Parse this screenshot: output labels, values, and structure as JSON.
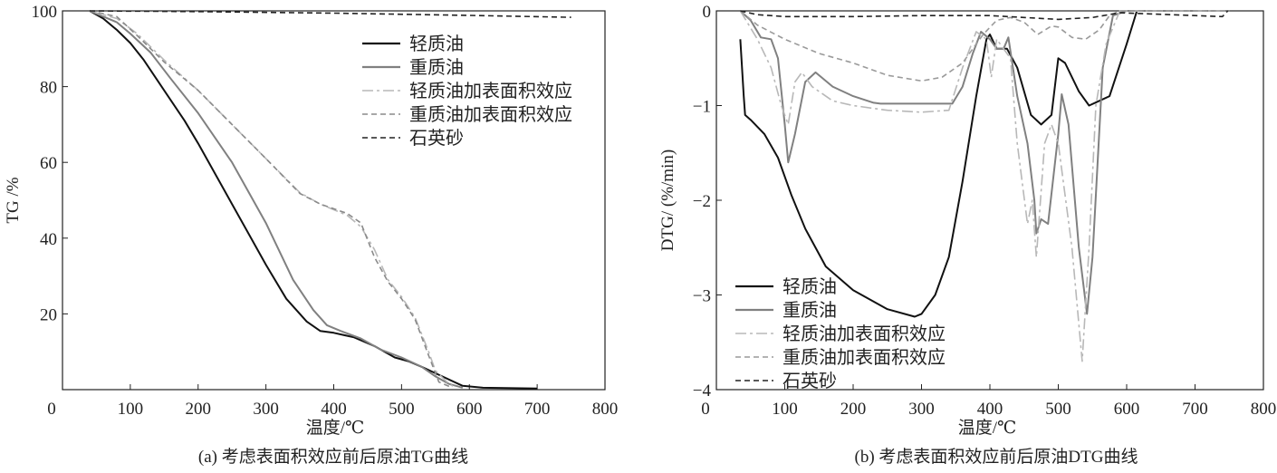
{
  "chart_data": [
    {
      "type": "line",
      "caption": "(a) 考虑表面积效应前后原油TG曲线",
      "xlabel": "温度/℃",
      "ylabel": "TG /%",
      "xlim": [
        0,
        800
      ],
      "ylim": [
        0,
        100
      ],
      "xticks": [
        "0",
        "100",
        "200",
        "300",
        "400",
        "500",
        "600",
        "700",
        "800"
      ],
      "yticks": [
        "20",
        "40",
        "60",
        "80",
        "100"
      ],
      "legend_position": "top-right",
      "series": [
        {
          "name": "轻质油",
          "color": "#111111",
          "style": "solid",
          "x": [
            40,
            60,
            80,
            100,
            120,
            150,
            180,
            200,
            250,
            300,
            330,
            360,
            380,
            400,
            430,
            460,
            490,
            510,
            530,
            560,
            590,
            620,
            700
          ],
          "y": [
            100,
            98,
            95,
            91.5,
            87,
            79,
            71,
            65,
            49,
            33,
            24,
            18,
            15.5,
            15,
            13.8,
            11.5,
            8.5,
            7.5,
            6,
            3.5,
            1,
            0.5,
            0.3
          ]
        },
        {
          "name": "重质油",
          "color": "#808080",
          "style": "solid",
          "x": [
            40,
            80,
            100,
            130,
            160,
            200,
            250,
            300,
            340,
            370,
            390,
            410,
            440,
            470,
            500,
            530,
            550,
            570,
            590
          ],
          "y": [
            100,
            97,
            94,
            89,
            82,
            73,
            60,
            44,
            29,
            21,
            17,
            15.5,
            13.5,
            10.5,
            8.5,
            6,
            3.5,
            1.5,
            0.5
          ]
        },
        {
          "name": "轻质油加表面积效应",
          "color": "#b8b8b8",
          "style": "dashdot",
          "x": [
            40,
            80,
            110,
            150,
            200,
            250,
            300,
            350,
            380,
            420,
            440,
            460,
            480,
            500,
            520,
            540,
            550,
            570,
            580
          ],
          "y": [
            100,
            98,
            94,
            87,
            79,
            70,
            61,
            52,
            49,
            46,
            43,
            37,
            29,
            24.5,
            19,
            10,
            5,
            1.5,
            0.5
          ]
        },
        {
          "name": "重质油加表面积效应",
          "color": "#8a8a8a",
          "style": "dashed",
          "x": [
            40,
            80,
            110,
            150,
            200,
            250,
            300,
            350,
            380,
            420,
            440,
            460,
            480,
            500,
            520,
            540,
            555,
            575
          ],
          "y": [
            100,
            98.5,
            93.5,
            86.5,
            79,
            70,
            61,
            51.8,
            49,
            46.5,
            44,
            35,
            28.5,
            24,
            18.5,
            9,
            2,
            0.5
          ]
        },
        {
          "name": "石英砂",
          "color": "#222222",
          "style": "dashed",
          "x": [
            40,
            200,
            400,
            600,
            750
          ],
          "y": [
            100,
            99.8,
            99.4,
            98.8,
            98.3
          ]
        }
      ]
    },
    {
      "type": "line",
      "caption": "(b) 考虑表面积效应前后原油DTG曲线",
      "xlabel": "温度/℃",
      "ylabel": "DTG/ (%/min)",
      "xlim": [
        0,
        800
      ],
      "ylim": [
        -4,
        0
      ],
      "xticks": [
        "0",
        "100",
        "200",
        "300",
        "400",
        "500",
        "600",
        "700",
        "800"
      ],
      "yticks": [
        "−4",
        "−3",
        "−2",
        "−1",
        "0"
      ],
      "legend_position": "bottom-left",
      "series": [
        {
          "name": "轻质油",
          "color": "#111111",
          "style": "solid",
          "x": [
            35,
            40,
            42,
            50,
            70,
            90,
            110,
            130,
            160,
            200,
            250,
            290,
            300,
            320,
            340,
            360,
            380,
            395,
            400,
            410,
            425,
            440,
            460,
            475,
            490,
            500,
            510,
            530,
            545,
            560,
            575,
            600,
            615,
            700
          ],
          "y": [
            -0.3,
            -0.9,
            -1.1,
            -1.15,
            -1.3,
            -1.55,
            -1.95,
            -2.3,
            -2.7,
            -2.95,
            -3.15,
            -3.23,
            -3.2,
            -3.0,
            -2.6,
            -1.8,
            -0.9,
            -0.3,
            -0.25,
            -0.4,
            -0.4,
            -0.6,
            -1.1,
            -1.2,
            -1.1,
            -0.5,
            -0.55,
            -0.85,
            -1.0,
            -0.95,
            -0.9,
            -0.35,
            0,
            0
          ]
        },
        {
          "name": "重质油",
          "color": "#808080",
          "style": "solid",
          "x": [
            35,
            50,
            65,
            80,
            90,
            100,
            105,
            115,
            130,
            145,
            170,
            200,
            230,
            240,
            300,
            345,
            360,
            375,
            387,
            400,
            410,
            420,
            427,
            440,
            455,
            465,
            468,
            475,
            485,
            500,
            505,
            515,
            530,
            542,
            550,
            565,
            580,
            600,
            750
          ],
          "y": [
            0,
            -0.1,
            -0.28,
            -0.3,
            -0.5,
            -1.2,
            -1.6,
            -1.3,
            -0.75,
            -0.65,
            -0.8,
            -0.9,
            -0.97,
            -0.98,
            -0.98,
            -0.98,
            -0.8,
            -0.45,
            -0.22,
            -0.3,
            -0.4,
            -0.4,
            -0.28,
            -0.9,
            -1.4,
            -2.0,
            -2.35,
            -2.2,
            -2.25,
            -1.3,
            -0.88,
            -1.2,
            -2.5,
            -3.2,
            -2.6,
            -0.6,
            -0.05,
            0,
            0
          ]
        },
        {
          "name": "轻质油加表面积效应",
          "color": "#b8b8b8",
          "style": "dashdot",
          "x": [
            35,
            60,
            80,
            95,
            105,
            115,
            125,
            140,
            170,
            200,
            250,
            300,
            340,
            360,
            380,
            395,
            402,
            410,
            430,
            440,
            455,
            462,
            468,
            480,
            490,
            500,
            520,
            535,
            545,
            555,
            570,
            590,
            750
          ],
          "y": [
            0,
            -0.3,
            -0.6,
            -1.0,
            -1.2,
            -0.75,
            -0.65,
            -0.8,
            -0.95,
            -1.0,
            -1.05,
            -1.07,
            -1.05,
            -0.6,
            -0.22,
            -0.3,
            -0.7,
            -0.3,
            -0.5,
            -1.4,
            -2.25,
            -2.0,
            -2.6,
            -1.4,
            -1.2,
            -1.4,
            -2.5,
            -3.7,
            -2.5,
            -1.0,
            -0.35,
            0,
            0
          ]
        },
        {
          "name": "重质油加表面积效应",
          "color": "#9a9a9a",
          "style": "dashed",
          "x": [
            35,
            60,
            100,
            150,
            200,
            250,
            300,
            330,
            360,
            390,
            410,
            430,
            450,
            470,
            490,
            500,
            520,
            540,
            560,
            575,
            590,
            750
          ],
          "y": [
            0,
            -0.15,
            -0.3,
            -0.45,
            -0.55,
            -0.68,
            -0.74,
            -0.7,
            -0.55,
            -0.25,
            -0.1,
            -0.07,
            -0.12,
            -0.25,
            -0.16,
            -0.17,
            -0.28,
            -0.3,
            -0.2,
            -0.05,
            0,
            0
          ]
        },
        {
          "name": "石英砂",
          "color": "#222222",
          "style": "dashed",
          "x": [
            35,
            60,
            100,
            200,
            300,
            400,
            500,
            550,
            590,
            700,
            740,
            748
          ],
          "y": [
            0,
            -0.04,
            -0.06,
            -0.06,
            -0.05,
            -0.05,
            -0.09,
            -0.07,
            -0.02,
            -0.05,
            -0.06,
            0
          ]
        }
      ]
    }
  ]
}
